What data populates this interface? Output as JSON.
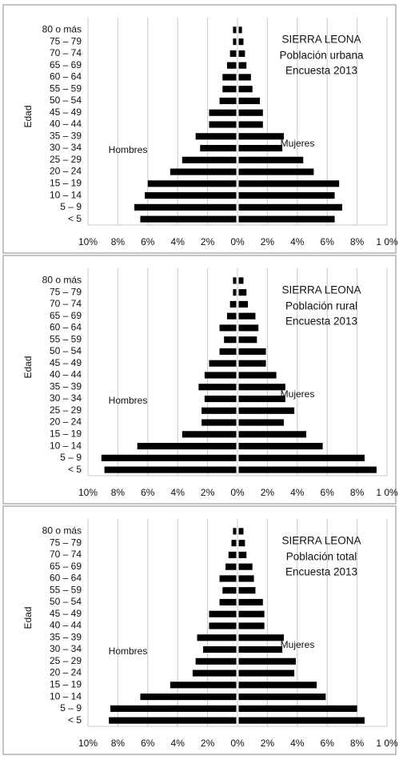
{
  "chart_data": [
    {
      "type": "pyramid",
      "title": "SIERRA LEONA",
      "subtitle": [
        "Población urbana",
        "Encuesta 2013"
      ],
      "ylabel": "Edad",
      "categories": [
        "< 5",
        "5 – 9",
        "10 – 14",
        "15 – 19",
        "20 – 24",
        "25 – 29",
        "30 – 34",
        "35 – 39",
        "40 – 44",
        "45 – 49",
        "50 – 54",
        "55 – 59",
        "60 – 64",
        "65 – 69",
        "70 – 74",
        "75 – 79",
        "80 o más"
      ],
      "series": [
        {
          "name": "Hombres",
          "color": "#000000",
          "side": "left",
          "values": [
            6.5,
            6.9,
            6.2,
            6.0,
            4.5,
            3.7,
            2.5,
            2.8,
            1.9,
            1.9,
            1.2,
            1.0,
            1.0,
            0.7,
            0.5,
            0.3,
            0.3
          ]
        },
        {
          "name": "Mujeres",
          "color": "#000000",
          "side": "right",
          "values": [
            6.5,
            7.0,
            6.5,
            6.8,
            5.1,
            4.4,
            3.0,
            3.1,
            1.7,
            1.7,
            1.5,
            1.0,
            0.9,
            0.6,
            0.5,
            0.4,
            0.3
          ]
        }
      ],
      "xlim": [
        -10,
        10
      ],
      "xticks": [
        {
          "value": -10,
          "label": "10%"
        },
        {
          "value": -8,
          "label": "8%"
        },
        {
          "value": -6,
          "label": "6%"
        },
        {
          "value": -4,
          "label": "4%"
        },
        {
          "value": -2,
          "label": "2%"
        },
        {
          "value": 0,
          "label": "0%"
        },
        {
          "value": 2,
          "label": "2%"
        },
        {
          "value": 4,
          "label": "4%"
        },
        {
          "value": 6,
          "label": "6%"
        },
        {
          "value": 8,
          "label": "8%"
        },
        {
          "value": 10,
          "label": "1 0%"
        }
      ],
      "grid": true
    },
    {
      "type": "pyramid",
      "title": "SIERRA LEONA",
      "subtitle": [
        "Población rural",
        "Encuesta 2013"
      ],
      "ylabel": "Edad",
      "categories": [
        "< 5",
        "5 – 9",
        "10 – 14",
        "15 – 19",
        "20 – 24",
        "25 – 29",
        "30 – 34",
        "35 – 39",
        "40 – 44",
        "45 – 49",
        "50 – 54",
        "55 – 59",
        "60 – 64",
        "65 – 69",
        "70 – 74",
        "75 – 79",
        "80 o más"
      ],
      "series": [
        {
          "name": "Hombres",
          "color": "#000000",
          "side": "left",
          "values": [
            8.9,
            9.1,
            6.7,
            3.7,
            2.4,
            2.4,
            2.2,
            2.6,
            2.2,
            1.9,
            1.2,
            0.9,
            1.2,
            0.7,
            0.5,
            0.3,
            0.3
          ]
        },
        {
          "name": "Mujeres",
          "color": "#000000",
          "side": "right",
          "values": [
            9.3,
            8.5,
            5.7,
            4.6,
            3.1,
            3.8,
            3.2,
            3.2,
            2.6,
            1.9,
            1.9,
            1.3,
            1.4,
            1.2,
            0.7,
            0.6,
            0.4
          ]
        }
      ],
      "xlim": [
        -10,
        10
      ],
      "xticks": [
        {
          "value": -10,
          "label": "10%"
        },
        {
          "value": -8,
          "label": "8%"
        },
        {
          "value": -6,
          "label": "6%"
        },
        {
          "value": -4,
          "label": "4%"
        },
        {
          "value": -2,
          "label": "2%"
        },
        {
          "value": 0,
          "label": "0%"
        },
        {
          "value": 2,
          "label": "2%"
        },
        {
          "value": 4,
          "label": "4%"
        },
        {
          "value": 6,
          "label": "6%"
        },
        {
          "value": 8,
          "label": "8%"
        },
        {
          "value": 10,
          "label": "1 0%"
        }
      ],
      "grid": true
    },
    {
      "type": "pyramid",
      "title": "SIERRA LEONA",
      "subtitle": [
        "Población total",
        "Encuesta 2013"
      ],
      "ylabel": "Edad",
      "categories": [
        "< 5",
        "5 – 9",
        "10 – 14",
        "15 – 19",
        "20 – 24",
        "25 – 29",
        "30 – 34",
        "35 – 39",
        "40 – 44",
        "45 – 49",
        "50 – 54",
        "55 – 59",
        "60 – 64",
        "65 – 69",
        "70 – 74",
        "75 – 79",
        "80 o más"
      ],
      "series": [
        {
          "name": "Hombres",
          "color": "#000000",
          "side": "left",
          "values": [
            8.6,
            8.5,
            6.5,
            4.5,
            3.0,
            2.8,
            2.3,
            2.7,
            1.9,
            1.9,
            1.2,
            1.0,
            1.2,
            0.8,
            0.6,
            0.4,
            0.3
          ]
        },
        {
          "name": "Mujeres",
          "color": "#000000",
          "side": "right",
          "values": [
            8.5,
            8.0,
            5.9,
            5.3,
            3.8,
            3.9,
            3.0,
            3.1,
            1.8,
            1.8,
            1.7,
            1.2,
            1.1,
            1.0,
            0.6,
            0.5,
            0.4
          ]
        }
      ],
      "xlim": [
        -10,
        10
      ],
      "xticks": [
        {
          "value": -10,
          "label": "10%"
        },
        {
          "value": -8,
          "label": "8%"
        },
        {
          "value": -6,
          "label": "6%"
        },
        {
          "value": -4,
          "label": "4%"
        },
        {
          "value": -2,
          "label": "2%"
        },
        {
          "value": 0,
          "label": "0%"
        },
        {
          "value": 2,
          "label": "2%"
        },
        {
          "value": 4,
          "label": "4%"
        },
        {
          "value": 6,
          "label": "6%"
        },
        {
          "value": 8,
          "label": "8%"
        },
        {
          "value": 10,
          "label": "1 0%"
        }
      ],
      "grid": true
    }
  ]
}
